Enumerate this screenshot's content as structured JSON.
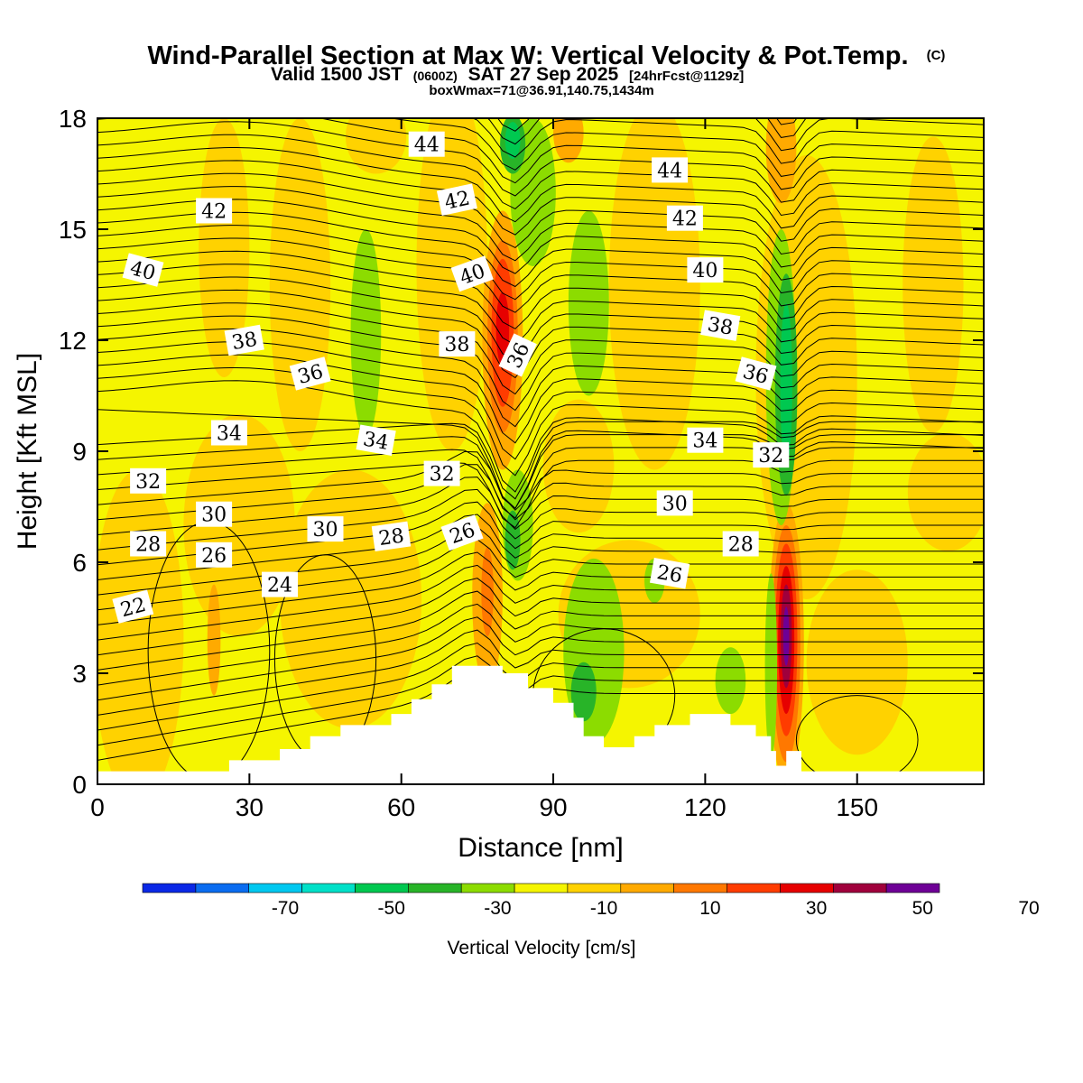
{
  "header": {
    "title_main": "Wind-Parallel Section at Max W: Vertical Velocity & Pot.Temp.",
    "title_c": "(C)",
    "subtitle_a": "Valid 1500 JST",
    "subtitle_b": "(0600Z)",
    "subtitle_c": "SAT 27 Sep 2025",
    "subtitle_d": "[24hrFcst@1129z]",
    "line3": "boxWmax=71@36.91,140.75,1434m"
  },
  "chart_data": {
    "type": "heatmap",
    "xlabel": "Distance [nm]",
    "ylabel": "Height [Kft MSL]",
    "xlim": [
      0,
      175
    ],
    "ylim": [
      0,
      18
    ],
    "xticks": [
      0,
      30,
      60,
      90,
      120,
      150
    ],
    "xtick_labels": [
      "0",
      "30",
      "60",
      "90",
      "120",
      "150"
    ],
    "yticks": [
      0,
      3,
      6,
      9,
      12,
      15,
      18
    ],
    "ytick_labels": [
      "0",
      "3",
      "6",
      "9",
      "12",
      "15",
      "18"
    ],
    "background_value_cms": -5,
    "colorbar": {
      "label": "Vertical Velocity [cm/s]",
      "bounds": [
        -80,
        -70,
        -60,
        -50,
        -40,
        -30,
        -20,
        -10,
        0,
        10,
        20,
        30,
        40,
        50,
        60,
        70,
        80
      ],
      "colors": [
        "#0a28e6",
        "#0a6cf0",
        "#00c8f0",
        "#00e0c8",
        "#00c850",
        "#28b428",
        "#8cdc00",
        "#f5f500",
        "#ffd200",
        "#ffaa00",
        "#ff7800",
        "#ff3c00",
        "#e60000",
        "#a0003c",
        "#6e0096"
      ],
      "tick_values": [
        -70,
        -50,
        -30,
        -10,
        10,
        30,
        50,
        70
      ],
      "tick_labels": [
        "-70",
        "-50",
        "-30",
        "-10",
        "10",
        "30",
        "50",
        "70"
      ]
    },
    "velocity_features": [
      {
        "x": 8,
        "y": 4,
        "rx": 9,
        "ry": 4.5,
        "value": 5
      },
      {
        "x": 28,
        "y": 7,
        "rx": 11,
        "ry": 3,
        "value": 5
      },
      {
        "x": 50,
        "y": 5,
        "rx": 14,
        "ry": 3.5,
        "value": 5
      },
      {
        "x": 105,
        "y": 4.6,
        "rx": 14,
        "ry": 2,
        "value": 5
      },
      {
        "x": 95,
        "y": 8.6,
        "rx": 7,
        "ry": 1.8,
        "value": 5
      },
      {
        "x": 40,
        "y": 13.5,
        "rx": 6,
        "ry": 4.5,
        "value": 5
      },
      {
        "x": 70,
        "y": 14,
        "rx": 7,
        "ry": 5,
        "value": 5
      },
      {
        "x": 110,
        "y": 13.5,
        "rx": 9,
        "ry": 5,
        "value": 5
      },
      {
        "x": 140,
        "y": 11,
        "rx": 10,
        "ry": 6,
        "value": 5
      },
      {
        "x": 165,
        "y": 13.5,
        "rx": 6,
        "ry": 4,
        "value": 5
      },
      {
        "x": 168,
        "y": 7.9,
        "rx": 8,
        "ry": 1.6,
        "value": 5
      },
      {
        "x": 150,
        "y": 3.3,
        "rx": 10,
        "ry": 2.5,
        "value": 5
      },
      {
        "x": 25,
        "y": 14.5,
        "rx": 5,
        "ry": 3.5,
        "value": 5
      },
      {
        "x": 55,
        "y": 17.5,
        "rx": 6,
        "ry": 1,
        "value": 5
      },
      {
        "x": 135,
        "y": 17.2,
        "rx": 3,
        "ry": 1.5,
        "value": 15
      },
      {
        "x": 93,
        "y": 17.6,
        "rx": 3,
        "ry": 0.8,
        "value": 15
      },
      {
        "x": 23,
        "y": 3.9,
        "rx": 1.3,
        "ry": 1.5,
        "value": 15
      },
      {
        "x": 80,
        "y": 12,
        "rx": 4,
        "ry": 3.5,
        "value": 15
      },
      {
        "x": 80,
        "y": 12.1,
        "rx": 3,
        "ry": 2.6,
        "value": 25
      },
      {
        "x": 80,
        "y": 12.2,
        "rx": 2.2,
        "ry": 2.0,
        "value": 35
      },
      {
        "x": 80,
        "y": 12.3,
        "rx": 1.3,
        "ry": 1.0,
        "value": 45
      },
      {
        "x": 77,
        "y": 5.1,
        "rx": 3,
        "ry": 2.5,
        "value": 15
      },
      {
        "x": 77,
        "y": 5.2,
        "rx": 1.2,
        "ry": 1.2,
        "value": 25
      },
      {
        "x": 136,
        "y": 3.8,
        "rx": 3.5,
        "ry": 3.8,
        "value": 15
      },
      {
        "x": 136,
        "y": 3.8,
        "rx": 2.8,
        "ry": 3.2,
        "value": 25
      },
      {
        "x": 136,
        "y": 3.9,
        "rx": 2.2,
        "ry": 2.6,
        "value": 35
      },
      {
        "x": 136,
        "y": 3.9,
        "rx": 1.6,
        "ry": 2.0,
        "value": 45
      },
      {
        "x": 136,
        "y": 4.0,
        "rx": 1.1,
        "ry": 1.4,
        "value": 55
      },
      {
        "x": 136,
        "y": 4.0,
        "rx": 0.6,
        "ry": 0.8,
        "value": 65
      },
      {
        "x": 53,
        "y": 12.2,
        "rx": 3,
        "ry": 2.8,
        "value": -15
      },
      {
        "x": 97,
        "y": 13,
        "rx": 4,
        "ry": 2.5,
        "value": -15
      },
      {
        "x": 86,
        "y": 16,
        "rx": 4.5,
        "ry": 2,
        "value": -15
      },
      {
        "x": 82,
        "y": 17.3,
        "rx": 2.5,
        "ry": 0.8,
        "value": -25
      },
      {
        "x": 82,
        "y": 17.4,
        "rx": 1.5,
        "ry": 0.5,
        "value": -35
      },
      {
        "x": 135,
        "y": 11,
        "rx": 3,
        "ry": 4,
        "value": -15
      },
      {
        "x": 136,
        "y": 10.8,
        "rx": 2.2,
        "ry": 3,
        "value": -25
      },
      {
        "x": 136,
        "y": 10.8,
        "rx": 1.2,
        "ry": 2.2,
        "value": -35
      },
      {
        "x": 83,
        "y": 7,
        "rx": 3,
        "ry": 1.5,
        "value": -15
      },
      {
        "x": 82,
        "y": 6.6,
        "rx": 1.5,
        "ry": 0.8,
        "value": -25
      },
      {
        "x": 98,
        "y": 3.6,
        "rx": 6,
        "ry": 2.5,
        "value": -15
      },
      {
        "x": 96,
        "y": 2.5,
        "rx": 2.5,
        "ry": 0.8,
        "value": -25
      },
      {
        "x": 133,
        "y": 3.2,
        "rx": 1.2,
        "ry": 2.5,
        "value": -15
      },
      {
        "x": 125,
        "y": 2.8,
        "rx": 3,
        "ry": 0.9,
        "value": -15
      },
      {
        "x": 110,
        "y": 5.5,
        "rx": 2,
        "ry": 0.6,
        "value": -15
      }
    ],
    "terrain": [
      [
        0,
        0.35
      ],
      [
        26,
        0.35
      ],
      [
        26,
        0.65
      ],
      [
        36,
        0.65
      ],
      [
        36,
        0.95
      ],
      [
        42,
        0.95
      ],
      [
        42,
        1.3
      ],
      [
        48,
        1.3
      ],
      [
        48,
        1.6
      ],
      [
        58,
        1.6
      ],
      [
        58,
        1.9
      ],
      [
        62,
        1.9
      ],
      [
        62,
        2.3
      ],
      [
        66,
        2.3
      ],
      [
        66,
        2.7
      ],
      [
        70,
        2.7
      ],
      [
        70,
        3.2
      ],
      [
        80,
        3.2
      ],
      [
        80,
        3.0
      ],
      [
        85,
        3.0
      ],
      [
        85,
        2.6
      ],
      [
        90,
        2.6
      ],
      [
        90,
        2.2
      ],
      [
        94,
        2.2
      ],
      [
        94,
        1.8
      ],
      [
        96,
        1.8
      ],
      [
        96,
        1.3
      ],
      [
        100,
        1.3
      ],
      [
        100,
        1.0
      ],
      [
        106,
        1.0
      ],
      [
        106,
        1.3
      ],
      [
        110,
        1.3
      ],
      [
        110,
        1.6
      ],
      [
        117,
        1.6
      ],
      [
        117,
        1.9
      ],
      [
        125,
        1.9
      ],
      [
        125,
        1.6
      ],
      [
        130,
        1.6
      ],
      [
        130,
        1.3
      ],
      [
        133,
        1.3
      ],
      [
        133,
        0.9
      ],
      [
        134,
        0.9
      ],
      [
        134,
        0.5
      ],
      [
        136,
        0.5
      ],
      [
        136,
        0.9
      ],
      [
        139,
        0.9
      ],
      [
        139,
        0.35
      ],
      [
        175,
        0.35
      ]
    ],
    "isentrope_labels": [
      {
        "text": "44",
        "x": 65,
        "y": 17.3,
        "angle": 0
      },
      {
        "text": "44",
        "x": 113,
        "y": 16.6,
        "angle": 0
      },
      {
        "text": "42",
        "x": 23,
        "y": 15.5,
        "angle": 0
      },
      {
        "text": "42",
        "x": 71,
        "y": 15.8,
        "angle": -12
      },
      {
        "text": "42",
        "x": 116,
        "y": 15.3,
        "angle": 0
      },
      {
        "text": "40",
        "x": 9,
        "y": 13.9,
        "angle": 15
      },
      {
        "text": "40",
        "x": 74,
        "y": 13.8,
        "angle": -20
      },
      {
        "text": "40",
        "x": 120,
        "y": 13.9,
        "angle": 0
      },
      {
        "text": "38",
        "x": 29,
        "y": 12,
        "angle": -10
      },
      {
        "text": "38",
        "x": 71,
        "y": 11.9,
        "angle": 0
      },
      {
        "text": "38",
        "x": 123,
        "y": 12.4,
        "angle": 10
      },
      {
        "text": "36",
        "x": 42,
        "y": 11.1,
        "angle": -15
      },
      {
        "text": "36",
        "x": 83,
        "y": 11.6,
        "angle": -65
      },
      {
        "text": "36",
        "x": 130,
        "y": 11.1,
        "angle": 15
      },
      {
        "text": "34",
        "x": 26,
        "y": 9.5,
        "angle": 0
      },
      {
        "text": "34",
        "x": 55,
        "y": 9.3,
        "angle": 10
      },
      {
        "text": "34",
        "x": 120,
        "y": 9.3,
        "angle": 0
      },
      {
        "text": "32",
        "x": 10,
        "y": 8.2,
        "angle": 0
      },
      {
        "text": "32",
        "x": 68,
        "y": 8.4,
        "angle": 0
      },
      {
        "text": "32",
        "x": 133,
        "y": 8.9,
        "angle": 0
      },
      {
        "text": "30",
        "x": 23,
        "y": 7.3,
        "angle": 0
      },
      {
        "text": "30",
        "x": 45,
        "y": 6.9,
        "angle": 0
      },
      {
        "text": "30",
        "x": 114,
        "y": 7.6,
        "angle": 0
      },
      {
        "text": "28",
        "x": 10,
        "y": 6.5,
        "angle": 0
      },
      {
        "text": "28",
        "x": 58,
        "y": 6.7,
        "angle": -8
      },
      {
        "text": "28",
        "x": 127,
        "y": 6.5,
        "angle": 0
      },
      {
        "text": "26",
        "x": 23,
        "y": 6.2,
        "angle": 0
      },
      {
        "text": "26",
        "x": 72,
        "y": 6.8,
        "angle": -20
      },
      {
        "text": "26",
        "x": 113,
        "y": 5.7,
        "angle": 10
      },
      {
        "text": "24",
        "x": 36,
        "y": 5.4,
        "angle": 0
      },
      {
        "text": "22",
        "x": 7,
        "y": 4.8,
        "angle": -15
      }
    ]
  }
}
